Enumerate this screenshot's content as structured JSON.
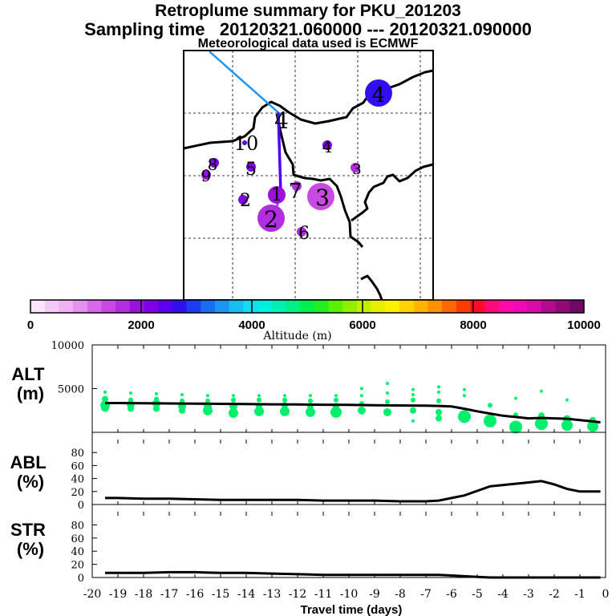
{
  "titles": {
    "line1": "Retroplume summary for PKU_201203",
    "line2": "Sampling time   20120321.060000 --- 20120321.090000",
    "line3": "Meteorological data used is ECMWF"
  },
  "chart_data": [
    {
      "type": "map",
      "name": "retroplume-map",
      "markers": [
        {
          "label": "4",
          "value_m": 2700,
          "size": "large"
        },
        {
          "label": "4",
          "value_m": 2300,
          "size": "small"
        },
        {
          "label": "4",
          "value_m": 2000,
          "size": "none"
        },
        {
          "label": "10",
          "value_m": 2500,
          "size": "tiny"
        },
        {
          "label": "8",
          "value_m": 2200,
          "size": "small"
        },
        {
          "label": "9",
          "value_m": 1900,
          "size": "small"
        },
        {
          "label": "5",
          "value_m": 2200,
          "size": "small"
        },
        {
          "label": "3",
          "value_m": 1700,
          "size": "small"
        },
        {
          "label": "3",
          "value_m": 1500,
          "size": "large"
        },
        {
          "label": "2",
          "value_m": 2300,
          "size": "small"
        },
        {
          "label": "2",
          "value_m": 1700,
          "size": "large"
        },
        {
          "label": "1",
          "value_m": 2000,
          "size": "medium"
        },
        {
          "label": "6",
          "value_m": 1700,
          "size": "small"
        },
        {
          "label": "7",
          "value_m": 1700,
          "size": "small"
        }
      ]
    },
    {
      "type": "colorbar",
      "xlabel": "Altitude (m)",
      "range": [
        0,
        10000
      ],
      "tick_labels": [
        "0",
        "2000",
        "4000",
        "6000",
        "8000",
        "10000"
      ],
      "colors": [
        "#fde6fd",
        "#f5c9f7",
        "#eeb1f2",
        "#e392ee",
        "#d76ae8",
        "#c94ae3",
        "#b02ee0",
        "#9a12e0",
        "#7f00e8",
        "#5a00ee",
        "#3010f0",
        "#1e3cf2",
        "#1a6cf2",
        "#1a96f2",
        "#18bef2",
        "#10def0",
        "#00f0dc",
        "#00f0b4",
        "#00f084",
        "#00f050",
        "#20f020",
        "#5af000",
        "#90f000",
        "#c4f000",
        "#e8f000",
        "#fff000",
        "#ffd400",
        "#ffb400",
        "#ff9000",
        "#ff6800",
        "#ff3c00",
        "#ff0a28",
        "#ff0a78",
        "#ff0aa8",
        "#f00ab4",
        "#d80aa8",
        "#b40a90",
        "#900a78",
        "#6e0a66"
      ]
    },
    {
      "type": "scatter+line",
      "name": "ALT",
      "ylabel": "ALT\n(m)",
      "xlim": [
        -20,
        0
      ],
      "ylim": [
        0,
        10000
      ],
      "y_tick_labels": [
        "5000",
        "10000"
      ],
      "line_x": [
        -19.5,
        -19,
        -18,
        -17,
        -16,
        -15,
        -14,
        -13,
        -12,
        -11,
        -10,
        -9,
        -8,
        -7,
        -6.5,
        -6,
        -5.5,
        -5,
        -4.5,
        -4,
        -3.5,
        -3,
        -2.5,
        -2,
        -1.5,
        -1,
        -0.5,
        -0.2
      ],
      "line_y": [
        3350,
        3350,
        3320,
        3300,
        3280,
        3260,
        3240,
        3200,
        3180,
        3160,
        3140,
        3100,
        3070,
        3050,
        3020,
        2950,
        2700,
        2400,
        2150,
        1900,
        1750,
        1600,
        1650,
        1600,
        1550,
        1400,
        1250,
        1150
      ],
      "points": [
        {
          "x": -19.5,
          "y": 3100,
          "s": 6
        },
        {
          "x": -19.5,
          "y": 2800,
          "s": 5
        },
        {
          "x": -19.5,
          "y": 3800,
          "s": 4
        },
        {
          "x": -19.5,
          "y": 4600,
          "s": 2
        },
        {
          "x": -18.5,
          "y": 3200,
          "s": 5
        },
        {
          "x": -18.5,
          "y": 2700,
          "s": 4
        },
        {
          "x": -18.5,
          "y": 3700,
          "s": 3
        },
        {
          "x": -18.5,
          "y": 4500,
          "s": 2
        },
        {
          "x": -17.5,
          "y": 3300,
          "s": 5
        },
        {
          "x": -17.5,
          "y": 2700,
          "s": 4
        },
        {
          "x": -17.5,
          "y": 3800,
          "s": 3
        },
        {
          "x": -17.5,
          "y": 4400,
          "s": 2
        },
        {
          "x": -16.5,
          "y": 3000,
          "s": 5
        },
        {
          "x": -16.5,
          "y": 2500,
          "s": 4
        },
        {
          "x": -16.5,
          "y": 3600,
          "s": 3
        },
        {
          "x": -16.5,
          "y": 4300,
          "s": 2
        },
        {
          "x": -15.5,
          "y": 2500,
          "s": 6
        },
        {
          "x": -15.5,
          "y": 3000,
          "s": 5
        },
        {
          "x": -15.5,
          "y": 3600,
          "s": 3
        },
        {
          "x": -15.5,
          "y": 4200,
          "s": 2
        },
        {
          "x": -14.5,
          "y": 2200,
          "s": 6
        },
        {
          "x": -14.5,
          "y": 3000,
          "s": 5
        },
        {
          "x": -14.5,
          "y": 3700,
          "s": 3
        },
        {
          "x": -14.5,
          "y": 4200,
          "s": 2
        },
        {
          "x": -13.5,
          "y": 2400,
          "s": 6
        },
        {
          "x": -13.5,
          "y": 3000,
          "s": 4
        },
        {
          "x": -13.5,
          "y": 3700,
          "s": 3
        },
        {
          "x": -13.5,
          "y": 4200,
          "s": 2
        },
        {
          "x": -12.5,
          "y": 2400,
          "s": 6
        },
        {
          "x": -12.5,
          "y": 3100,
          "s": 4
        },
        {
          "x": -12.5,
          "y": 3700,
          "s": 3
        },
        {
          "x": -12.5,
          "y": 4200,
          "s": 2
        },
        {
          "x": -11.5,
          "y": 2300,
          "s": 6
        },
        {
          "x": -11.5,
          "y": 3000,
          "s": 4
        },
        {
          "x": -11.5,
          "y": 3600,
          "s": 3
        },
        {
          "x": -11.5,
          "y": 4200,
          "s": 2
        },
        {
          "x": -10.5,
          "y": 2300,
          "s": 7
        },
        {
          "x": -10.5,
          "y": 3000,
          "s": 4
        },
        {
          "x": -10.5,
          "y": 3700,
          "s": 3
        },
        {
          "x": -10.5,
          "y": 4200,
          "s": 2
        },
        {
          "x": -9.5,
          "y": 2500,
          "s": 5
        },
        {
          "x": -9.5,
          "y": 3300,
          "s": 3
        },
        {
          "x": -9.5,
          "y": 4200,
          "s": 2
        },
        {
          "x": -9.5,
          "y": 5000,
          "s": 2
        },
        {
          "x": -8.5,
          "y": 2300,
          "s": 5
        },
        {
          "x": -8.5,
          "y": 3500,
          "s": 3
        },
        {
          "x": -8.5,
          "y": 4500,
          "s": 2
        },
        {
          "x": -8.5,
          "y": 5600,
          "s": 2
        },
        {
          "x": -7.5,
          "y": 1300,
          "s": 2
        },
        {
          "x": -7.5,
          "y": 2500,
          "s": 4
        },
        {
          "x": -7.5,
          "y": 3700,
          "s": 3
        },
        {
          "x": -7.5,
          "y": 4300,
          "s": 2
        },
        {
          "x": -7.5,
          "y": 4900,
          "s": 2
        },
        {
          "x": -6.5,
          "y": 1600,
          "s": 4
        },
        {
          "x": -6.5,
          "y": 2300,
          "s": 4
        },
        {
          "x": -6.5,
          "y": 3600,
          "s": 3
        },
        {
          "x": -6.5,
          "y": 4600,
          "s": 2
        },
        {
          "x": -6.5,
          "y": 5200,
          "s": 2
        },
        {
          "x": -5.5,
          "y": 1800,
          "s": 8
        },
        {
          "x": -5.5,
          "y": 4200,
          "s": 2
        },
        {
          "x": -5.5,
          "y": 4900,
          "s": 2
        },
        {
          "x": -4.5,
          "y": 1300,
          "s": 8
        },
        {
          "x": -4.5,
          "y": 3100,
          "s": 3
        },
        {
          "x": -3.5,
          "y": 600,
          "s": 8
        },
        {
          "x": -3.5,
          "y": 2000,
          "s": 3
        },
        {
          "x": -3.5,
          "y": 3900,
          "s": 2
        },
        {
          "x": -2.5,
          "y": 1000,
          "s": 8
        },
        {
          "x": -2.5,
          "y": 1900,
          "s": 4
        },
        {
          "x": -2.5,
          "y": 4700,
          "s": 2
        },
        {
          "x": -1.5,
          "y": 800,
          "s": 7
        },
        {
          "x": -1.5,
          "y": 1500,
          "s": 5
        },
        {
          "x": -1.5,
          "y": 3700,
          "s": 2
        },
        {
          "x": -0.5,
          "y": 700,
          "s": 7
        },
        {
          "x": -0.5,
          "y": 1400,
          "s": 4
        }
      ]
    },
    {
      "type": "line",
      "name": "ABL",
      "ylabel": "ABL\n(%)",
      "xlim": [
        -20,
        0
      ],
      "ylim": [
        0,
        100
      ],
      "y_tick_labels": [
        "0",
        "20",
        "40",
        "60",
        "80"
      ],
      "x": [
        -19.5,
        -19,
        -18,
        -17,
        -16,
        -15,
        -14,
        -13,
        -12,
        -11,
        -10,
        -9,
        -8,
        -7,
        -6.5,
        -6,
        -5.5,
        -5,
        -4.5,
        -4,
        -3.5,
        -3,
        -2.5,
        -2,
        -1.5,
        -1,
        -0.5,
        -0.2
      ],
      "y": [
        10,
        10,
        9,
        9,
        8,
        7,
        7,
        7,
        7,
        6,
        6,
        6,
        5,
        5,
        6,
        10,
        14,
        21,
        28,
        30,
        32,
        34,
        36,
        31,
        24,
        20,
        20,
        20
      ]
    },
    {
      "type": "line",
      "name": "STR",
      "ylabel": "STR\n(%)",
      "xlim": [
        -20,
        0
      ],
      "ylim": [
        0,
        100
      ],
      "y_tick_labels": [
        "0",
        "20",
        "40",
        "60",
        "80"
      ],
      "xlabel": "Travel time (days)",
      "x_tick_labels": [
        "-20",
        "-19",
        "-18",
        "-17",
        "-16",
        "-15",
        "-14",
        "-13",
        "-12",
        "-11",
        "-10",
        "-9",
        "-8",
        "-7",
        "-6",
        "-5",
        "-4",
        "-3",
        "-2",
        "-1",
        "0"
      ],
      "x": [
        -19.5,
        -19,
        -18,
        -17,
        -16,
        -15,
        -14,
        -13,
        -12,
        -11,
        -10,
        -9,
        -8,
        -7,
        -6.5,
        -6,
        -5.5,
        -5,
        -4.5,
        -4,
        -3.5,
        -3,
        -2.5,
        -2,
        -1.5,
        -1,
        -0.5,
        -0.2
      ],
      "y": [
        7,
        7,
        7,
        8,
        8,
        7,
        7,
        6,
        5,
        4,
        4,
        4,
        4,
        4,
        4,
        3,
        2,
        1,
        0,
        0,
        0,
        0,
        0,
        0,
        0,
        0,
        0,
        0
      ]
    }
  ]
}
